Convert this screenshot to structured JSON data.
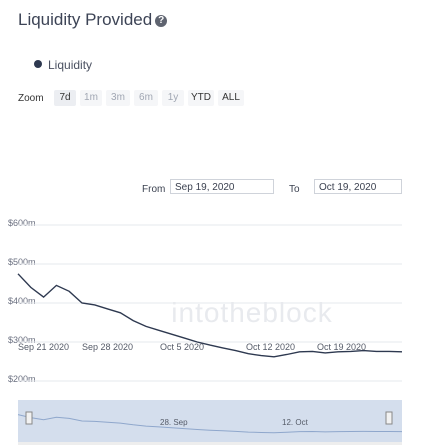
{
  "title": "Liquidity Provided",
  "help_icon": "question-circle-icon",
  "legend": {
    "label": "Liquidity",
    "color": "#2e3950"
  },
  "zoom": {
    "label": "Zoom",
    "buttons": [
      "7d",
      "1m",
      "3m",
      "6m",
      "1y",
      "YTD",
      "ALL"
    ],
    "selected": "7d"
  },
  "range": {
    "from_label": "From",
    "from": "Sep 19, 2020",
    "to_label": "To",
    "to": "Oct 19, 2020"
  },
  "watermark": "intotheblock",
  "chart_data": {
    "type": "line",
    "series": [
      {
        "name": "Liquidity",
        "x": [
          "2020-09-19",
          "2020-09-20",
          "2020-09-21",
          "2020-09-22",
          "2020-09-23",
          "2020-09-24",
          "2020-09-25",
          "2020-09-26",
          "2020-09-27",
          "2020-09-28",
          "2020-09-29",
          "2020-09-30",
          "2020-10-01",
          "2020-10-02",
          "2020-10-03",
          "2020-10-04",
          "2020-10-05",
          "2020-10-06",
          "2020-10-07",
          "2020-10-08",
          "2020-10-09",
          "2020-10-10",
          "2020-10-11",
          "2020-10-12",
          "2020-10-13",
          "2020-10-14",
          "2020-10-15",
          "2020-10-16",
          "2020-10-17",
          "2020-10-18",
          "2020-10-19"
        ],
        "values": [
          475,
          440,
          415,
          445,
          430,
          400,
          395,
          385,
          375,
          355,
          340,
          330,
          320,
          310,
          300,
          292,
          285,
          278,
          270,
          265,
          262,
          268,
          275,
          276,
          272,
          275,
          276,
          278,
          276,
          276,
          275
        ]
      }
    ],
    "ylim": [
      200,
      600
    ],
    "yticks": [
      "$600m",
      "$500m",
      "$400m",
      "$300m",
      "$200m"
    ],
    "xticks": [
      "Sep 21 2020",
      "Sep 28 2020",
      "Oct 5 2020",
      "Oct 12 2020",
      "Oct 19 2020"
    ],
    "navigator_labels": [
      "28. Sep",
      "12. Oct"
    ],
    "grid": true
  }
}
